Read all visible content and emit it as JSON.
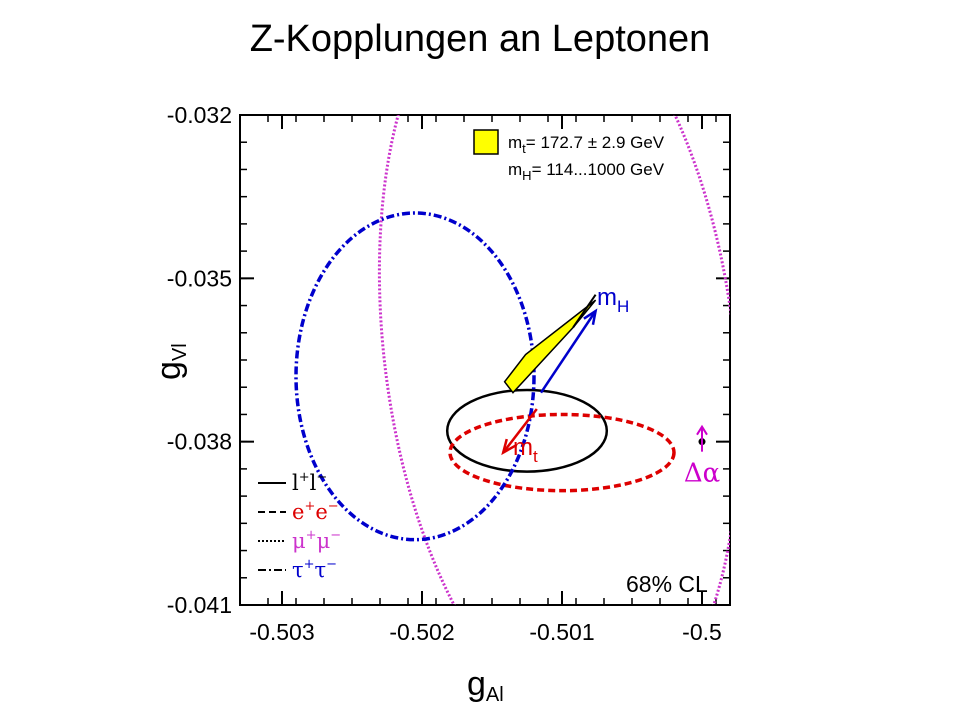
{
  "title": "Z-Kopplungen an Leptonen",
  "chart_data": {
    "type": "contour",
    "xlabel": "g",
    "xlabel_sub": "Al",
    "ylabel": "g",
    "ylabel_sub": "Vl",
    "xlim": [
      -0.5033,
      -0.4998
    ],
    "ylim": [
      -0.041,
      -0.032
    ],
    "x_ticks": [
      -0.503,
      -0.502,
      -0.501,
      -0.5
    ],
    "x_tick_labels": [
      "-0.503",
      "-0.502",
      "-0.501",
      "-0.5"
    ],
    "y_ticks": [
      -0.032,
      -0.035,
      -0.038,
      -0.041
    ],
    "y_tick_labels": [
      "-0.032",
      "-0.035",
      "-0.038",
      "-0.041"
    ],
    "confidence_label": "68% CL",
    "sm_band_legend": {
      "line1": "m",
      "line1_sub": "t",
      "line1_rest": "= 172.7 ± 2.9 GeV",
      "line2": "m",
      "line2_sub": "H",
      "line2_rest": "= 114...1000 GeV",
      "color": "#ffff00"
    },
    "series": [
      {
        "name": "l+l−",
        "style": "solid",
        "color": "#000000",
        "center": [
          -0.50125,
          -0.0378
        ],
        "semi_axes": [
          0.00057,
          0.00075
        ],
        "angle_deg": 0
      },
      {
        "name": "e+e−",
        "style": "dashed",
        "color": "#dd0000",
        "center": [
          -0.501,
          -0.0382
        ],
        "semi_axes": [
          0.0008,
          0.0007
        ],
        "angle_deg": 0
      },
      {
        "name": "μ+μ−",
        "style": "dotted",
        "color": "#cc33cc",
        "center": [
          -0.50102,
          -0.0363
        ],
        "semi_axes": [
          0.00125,
          0.007
        ],
        "angle_deg": -7
      },
      {
        "name": "τ+τ−",
        "style": "dashdot",
        "color": "#0000cc",
        "center": [
          -0.50205,
          -0.0368
        ],
        "semi_axes": [
          0.00085,
          0.003
        ],
        "angle_deg": 0
      }
    ],
    "sm_band": {
      "poly": [
        [
          -0.50135,
          -0.0371
        ],
        [
          -0.50092,
          -0.0359
        ],
        [
          -0.50076,
          -0.0354
        ],
        [
          -0.50126,
          -0.0364
        ],
        [
          -0.50141,
          -0.0369
        ]
      ],
      "top_point": [
        -0.50076,
        -0.0353
      ]
    },
    "arrows": [
      {
        "label": "m",
        "label_sub": "H",
        "color": "#0000cc",
        "from": [
          -0.50115,
          -0.0371
        ],
        "to": [
          -0.50076,
          -0.0356
        ]
      },
      {
        "label": "m",
        "label_sub": "t",
        "color": "#dd0000",
        "from": [
          -0.50118,
          -0.0374
        ],
        "to": [
          -0.50142,
          -0.0382
        ]
      }
    ],
    "delta_alpha": {
      "label": "Δα",
      "color": "#cc00cc",
      "point": [
        -0.5,
        -0.038
      ]
    }
  },
  "legend": [
    {
      "text": "l",
      "sup1": "+",
      "text2": "l",
      "sup2": "−",
      "color": "#000000"
    },
    {
      "text": "e",
      "sup1": "+",
      "text2": "e",
      "sup2": "−",
      "color": "#dd0000"
    },
    {
      "text": "μ",
      "sup1": "+",
      "text2": "μ",
      "sup2": "−",
      "color": "#cc33cc"
    },
    {
      "text": "τ",
      "sup1": "+",
      "text2": "τ",
      "sup2": "−",
      "color": "#0000cc"
    }
  ]
}
